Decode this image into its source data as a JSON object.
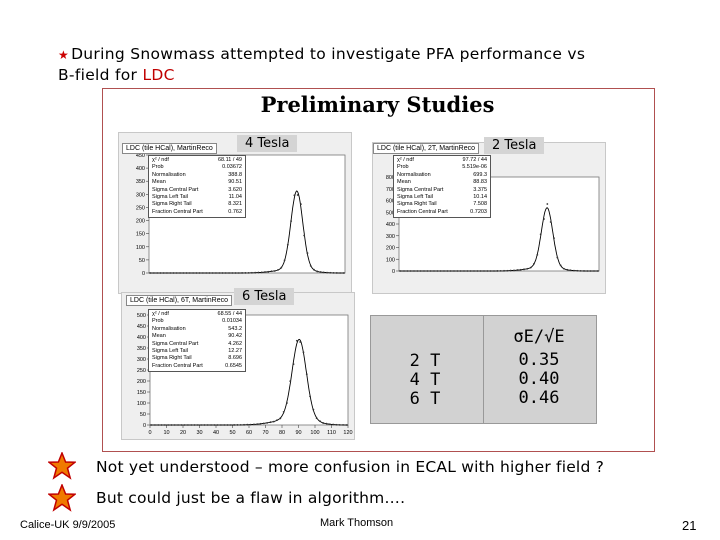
{
  "bullet": {
    "line1": "During Snowmass attempted to investigate PFA performance vs",
    "line2_prefix": "B-field for ",
    "line2_highlight": "LDC"
  },
  "figure": {
    "title": "Preliminary Studies",
    "plots": [
      {
        "title": "LDC (tile HCal), MartinReco",
        "tag": "4 Tesla",
        "yticks": [
          "450",
          "400",
          "350",
          "300",
          "250",
          "200",
          "150",
          "100",
          "50",
          "0"
        ],
        "stats": [
          [
            "χ² / ndf",
            "68.11 / 49"
          ],
          [
            "Prob",
            "0.03672"
          ],
          [
            "Normalisation",
            "388.8"
          ],
          [
            "Mean",
            "90.51"
          ],
          [
            "Sigma Central Part",
            "3.620"
          ],
          [
            "Sigma Left Tail",
            "11.04"
          ],
          [
            "Sigma Right Tail",
            "8.321"
          ],
          [
            "Fraction Central Part",
            "0.762"
          ]
        ]
      },
      {
        "title": "LDC (tile HCal), 2T, MartinReco",
        "tag": "2 Tesla",
        "yticks": [
          "800",
          "700",
          "600",
          "500",
          "400",
          "300",
          "200",
          "100",
          "0"
        ],
        "stats": [
          [
            "χ² / ndf",
            "97.72 / 44"
          ],
          [
            "Prob",
            "5.519e-06"
          ],
          [
            "Normalisation",
            "699.3"
          ],
          [
            "Mean",
            "88.83"
          ],
          [
            "Sigma Central Part",
            "3.375"
          ],
          [
            "Sigma Left Tail",
            "10.14"
          ],
          [
            "Sigma Right Tail",
            "7.508"
          ],
          [
            "Fraction Central Part",
            "0.7203"
          ]
        ]
      },
      {
        "title": "LDC (tile HCal), 6T, MartinReco",
        "tag": "6 Tesla",
        "yticks": [
          "500",
          "450",
          "400",
          "350",
          "300",
          "250",
          "200",
          "150",
          "100",
          "50",
          "0"
        ],
        "xticks": [
          "0",
          "10",
          "20",
          "30",
          "40",
          "50",
          "60",
          "70",
          "80",
          "90",
          "100",
          "110",
          "120"
        ],
        "stats": [
          [
            "χ² / ndf",
            "68.55 / 44"
          ],
          [
            "Prob",
            "0.01034"
          ],
          [
            "Normalisation",
            "543.2"
          ],
          [
            "Mean",
            "90.42"
          ],
          [
            "Sigma Central Part",
            "4.262"
          ],
          [
            "Sigma Left Tail",
            "12.27"
          ],
          [
            "Sigma Right Tail",
            "8.696"
          ],
          [
            "Fraction Central Part",
            "0.6545"
          ]
        ]
      }
    ]
  },
  "table": {
    "header": "σE/√E",
    "rows": [
      {
        "field": "2 T",
        "value": "0.35"
      },
      {
        "field": "4 T",
        "value": "0.40"
      },
      {
        "field": "6 T",
        "value": "0.46"
      }
    ]
  },
  "notes": [
    "Not yet understood – more confusion in ECAL with higher field ?",
    "But could just be a flaw in algorithm…."
  ],
  "footer": {
    "left": "Calice-UK 9/9/2005",
    "center": "Mark Thomson",
    "page": "21"
  },
  "colors": {
    "accent": "#c00000",
    "star": "#f07a00",
    "curve": "#000000",
    "points": "#333333"
  }
}
